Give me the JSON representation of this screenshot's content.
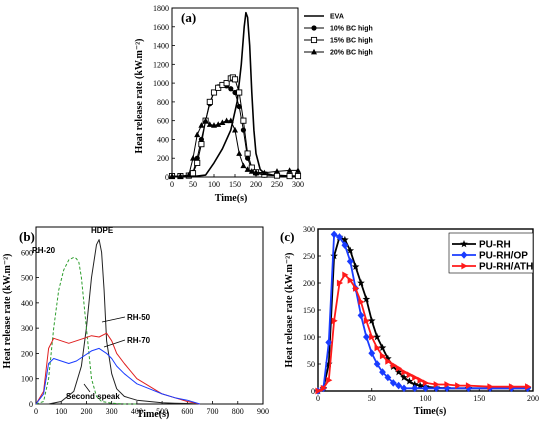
{
  "chart_data": [
    {
      "panel_label": "(a)",
      "type": "line",
      "xlabel": "Time(s)",
      "ylabel": "Heat release rate (kW.m⁻²)",
      "xlim": [
        0,
        300
      ],
      "ylim": [
        0,
        1800
      ],
      "xticks": [
        0,
        50,
        100,
        150,
        200,
        250,
        300
      ],
      "yticks": [
        0,
        200,
        400,
        600,
        800,
        1000,
        1200,
        1400,
        1600,
        1800
      ],
      "grid": false,
      "legend": "top-right",
      "series": [
        {
          "name": "EVA",
          "marker": "none",
          "color": "#000000",
          "x": [
            0,
            50,
            80,
            100,
            120,
            140,
            155,
            165,
            172,
            176,
            180,
            185,
            190,
            195,
            200,
            210,
            220,
            240,
            260,
            280,
            300
          ],
          "y": [
            5,
            5,
            20,
            150,
            300,
            500,
            800,
            1200,
            1600,
            1750,
            1700,
            1400,
            900,
            500,
            250,
            80,
            40,
            20,
            15,
            10,
            10
          ]
        },
        {
          "name": "10% BC high",
          "marker": "circle",
          "color": "#000000",
          "x": [
            0,
            20,
            40,
            50,
            60,
            70,
            80,
            90,
            100,
            110,
            120,
            130,
            140,
            150,
            160,
            170,
            180,
            190,
            200,
            220,
            250,
            280,
            300
          ],
          "y": [
            10,
            10,
            15,
            50,
            200,
            400,
            600,
            780,
            900,
            960,
            980,
            970,
            940,
            900,
            750,
            500,
            200,
            80,
            40,
            20,
            15,
            10,
            10
          ]
        },
        {
          "name": "15% BC high",
          "marker": "square-open",
          "color": "#000000",
          "x": [
            0,
            20,
            40,
            50,
            60,
            70,
            80,
            90,
            100,
            110,
            120,
            130,
            140,
            145,
            150,
            160,
            170,
            180,
            190,
            200,
            220,
            250,
            280,
            300
          ],
          "y": [
            10,
            10,
            15,
            40,
            150,
            350,
            600,
            800,
            900,
            950,
            980,
            1000,
            1050,
            1060,
            1040,
            900,
            600,
            250,
            100,
            50,
            25,
            15,
            10,
            10
          ]
        },
        {
          "name": "20% BC high",
          "marker": "triangle",
          "color": "#000000",
          "x": [
            0,
            20,
            40,
            50,
            60,
            70,
            80,
            90,
            100,
            110,
            120,
            130,
            140,
            150,
            160,
            170,
            180,
            190,
            200,
            220,
            250,
            280,
            300
          ],
          "y": [
            10,
            10,
            20,
            200,
            450,
            550,
            600,
            560,
            550,
            560,
            580,
            600,
            600,
            500,
            250,
            120,
            80,
            60,
            50,
            45,
            60,
            70,
            70
          ]
        }
      ]
    },
    {
      "panel_label": "(b)",
      "type": "line",
      "xlabel": "Time(s)",
      "ylabel": "Heat release rate (kW.m⁻²)",
      "xlim": [
        0,
        900
      ],
      "ylim": [
        0,
        700
      ],
      "xticks": [
        0,
        100,
        200,
        300,
        400,
        500,
        600,
        700,
        800,
        900
      ],
      "yticks": [
        0,
        100,
        200,
        300,
        400,
        500,
        600
      ],
      "grid": false,
      "annotations": [
        "HDPE",
        "RH-20",
        "RH-50",
        "RH-70",
        "Second speak"
      ],
      "series": [
        {
          "name": "HDPE",
          "color": "#222222",
          "dash": "none",
          "x": [
            0,
            50,
            100,
            150,
            180,
            200,
            220,
            240,
            250,
            260,
            270,
            280,
            300,
            320,
            350,
            400,
            450,
            500,
            550,
            600,
            650,
            700
          ],
          "y": [
            0,
            0,
            10,
            50,
            150,
            300,
            500,
            630,
            650,
            600,
            450,
            250,
            120,
            60,
            30,
            15,
            10,
            5,
            3,
            2,
            0,
            0
          ]
        },
        {
          "name": "RH-20",
          "color": "#2e9e2e",
          "dash": "3,2",
          "x": [
            0,
            30,
            50,
            70,
            90,
            110,
            130,
            150,
            160,
            170,
            180,
            200,
            220,
            240,
            260,
            300,
            350,
            400
          ],
          "y": [
            0,
            10,
            100,
            300,
            450,
            530,
            570,
            580,
            575,
            560,
            500,
            300,
            100,
            30,
            10,
            3,
            0,
            0
          ]
        },
        {
          "name": "RH-50",
          "color": "#e02020",
          "dash": "none",
          "x": [
            0,
            30,
            50,
            70,
            100,
            130,
            160,
            190,
            220,
            250,
            280,
            300,
            320,
            350,
            400,
            450,
            500,
            550,
            600,
            650
          ],
          "y": [
            0,
            50,
            220,
            260,
            250,
            240,
            250,
            260,
            270,
            265,
            280,
            250,
            200,
            160,
            100,
            70,
            40,
            25,
            10,
            0
          ]
        },
        {
          "name": "RH-70",
          "color": "#1a3cff",
          "dash": "none",
          "x": [
            0,
            30,
            50,
            70,
            100,
            130,
            160,
            190,
            220,
            250,
            280,
            300,
            320,
            350,
            400,
            450,
            500,
            550,
            600,
            650
          ],
          "y": [
            0,
            40,
            160,
            180,
            170,
            160,
            170,
            190,
            210,
            220,
            200,
            180,
            150,
            120,
            80,
            60,
            40,
            25,
            15,
            0
          ]
        }
      ]
    },
    {
      "panel_label": "(c)",
      "type": "line",
      "xlabel": "Time(s)",
      "ylabel": "Heat release rate (kW.m⁻²)",
      "xlim": [
        0,
        200
      ],
      "ylim": [
        0,
        300
      ],
      "xticks": [
        0,
        50,
        100,
        150,
        200
      ],
      "yticks": [
        0,
        50,
        100,
        150,
        200,
        250,
        300
      ],
      "grid": false,
      "legend": "top-right",
      "series": [
        {
          "name": "PU-RH",
          "marker": "star",
          "color": "#000000",
          "x": [
            0,
            5,
            10,
            15,
            20,
            25,
            30,
            35,
            40,
            45,
            50,
            55,
            60,
            65,
            70,
            75,
            80,
            85,
            90,
            95,
            100,
            110,
            120,
            140,
            160,
            180,
            195
          ],
          "y": [
            0,
            5,
            50,
            250,
            285,
            280,
            260,
            230,
            200,
            170,
            130,
            100,
            80,
            60,
            45,
            35,
            25,
            18,
            12,
            10,
            8,
            6,
            5,
            5,
            5,
            5,
            5
          ]
        },
        {
          "name": "PU-RH/OP",
          "marker": "diamond",
          "color": "#1a3cff",
          "x": [
            0,
            5,
            10,
            15,
            20,
            25,
            30,
            35,
            40,
            45,
            50,
            55,
            60,
            65,
            70,
            75,
            80,
            90,
            100,
            110,
            120,
            140,
            160,
            180,
            195
          ],
          "y": [
            0,
            5,
            90,
            290,
            285,
            270,
            240,
            190,
            140,
            100,
            70,
            50,
            35,
            25,
            15,
            10,
            5,
            5,
            5,
            5,
            5,
            5,
            5,
            5,
            5
          ]
        },
        {
          "name": "PU-RH/ATH",
          "marker": "triangle-right",
          "color": "#ff1a1a",
          "x": [
            0,
            5,
            10,
            15,
            20,
            25,
            30,
            35,
            40,
            45,
            50,
            55,
            60,
            65,
            70,
            75,
            80,
            85,
            90,
            95,
            100,
            110,
            120,
            130,
            140,
            160,
            180,
            195
          ],
          "y": [
            0,
            5,
            20,
            130,
            200,
            215,
            205,
            190,
            165,
            130,
            100,
            80,
            65,
            55,
            48,
            42,
            35,
            30,
            25,
            20,
            15,
            12,
            12,
            10,
            10,
            8,
            8,
            8
          ]
        }
      ]
    }
  ]
}
